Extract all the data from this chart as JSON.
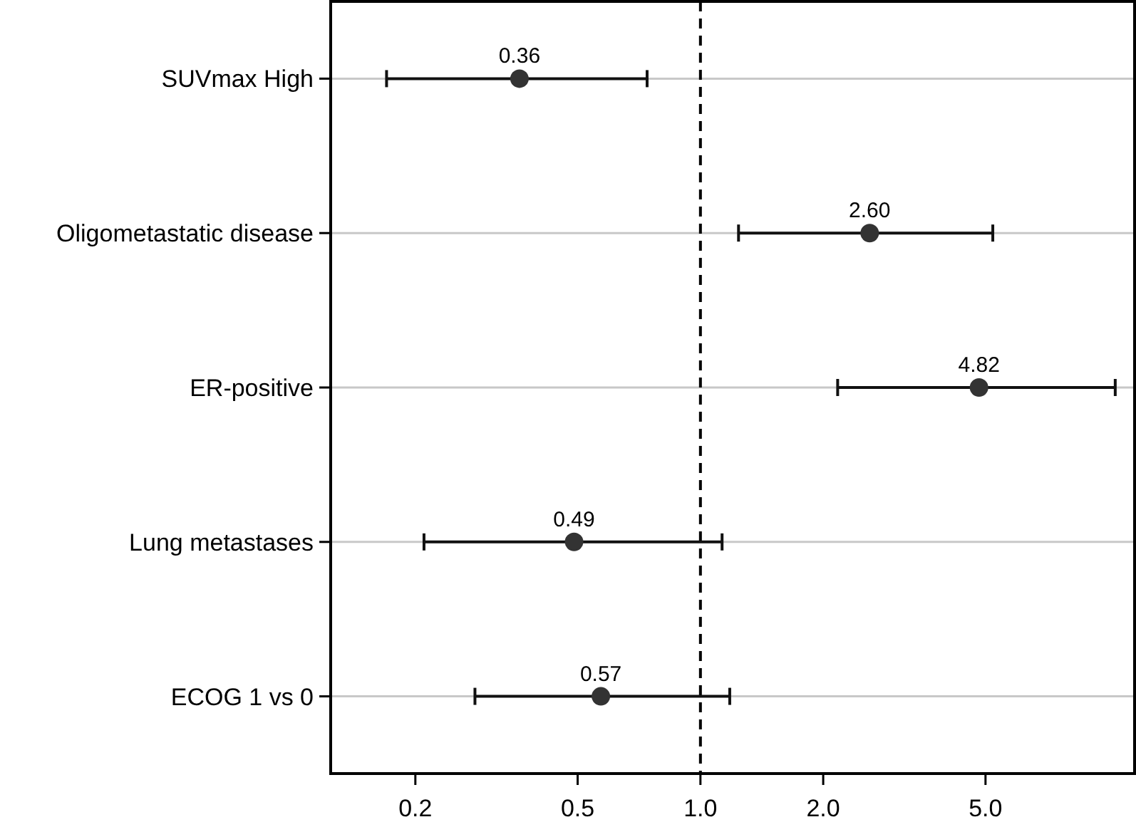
{
  "chart_data": {
    "type": "scatter",
    "orientation": "horizontal",
    "categories": [
      "SUVmax High",
      "Oligometastatic disease",
      "ER-positive",
      "Lung metastases",
      "ECOG 1 vs 0"
    ],
    "values": [
      0.36,
      2.6,
      4.82,
      0.49,
      0.57
    ],
    "errors": [
      [
        0.17,
        0.74
      ],
      [
        1.24,
        5.21
      ],
      [
        2.17,
        10.4
      ],
      [
        0.21,
        1.13
      ],
      [
        0.28,
        1.18
      ]
    ],
    "value_labels": [
      "0.36",
      "2.60",
      "4.82",
      "0.49",
      "0.57"
    ],
    "color": "#333333",
    "marker": "circle",
    "log": "x",
    "grid": "y",
    "xlim": [
      0.124,
      11.6
    ],
    "xticks": [
      0.2,
      0.5,
      {
        "value": 1,
        "label": "1.0"
      },
      {
        "value": 2,
        "label": "2.0"
      },
      {
        "value": 5,
        "label": "5.0"
      }
    ],
    "ref_lines": [
      {
        "axis": "x",
        "value": 1,
        "line_style": "dashed",
        "color": "#000000"
      }
    ]
  }
}
